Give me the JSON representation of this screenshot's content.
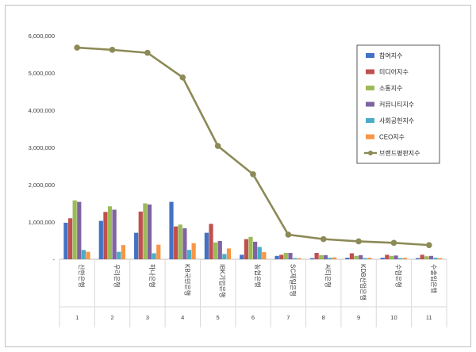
{
  "chart_data": {
    "type": "bar",
    "categories": [
      "신한은행",
      "우리은행",
      "하나은행",
      "KB국민은행",
      "IBK기업은행",
      "농협은행",
      "SC제일은행",
      "씨티은행",
      "KDB산업은행",
      "수협은행",
      "수출입은행"
    ],
    "category_numbers": [
      "1",
      "2",
      "3",
      "4",
      "5",
      "6",
      "7",
      "8",
      "9",
      "10",
      "11"
    ],
    "ylim": [
      0,
      6000000
    ],
    "yticks": [
      {
        "value": 0,
        "label": "-"
      },
      {
        "value": 1000000,
        "label": "1,000,000"
      },
      {
        "value": 2000000,
        "label": "2,000,000"
      },
      {
        "value": 3000000,
        "label": "3,000,000"
      },
      {
        "value": 4000000,
        "label": "4,000,000"
      },
      {
        "value": 5000000,
        "label": "5,000,000"
      },
      {
        "value": 6000000,
        "label": "6,000,000"
      }
    ],
    "grid": false,
    "legend_position": "right",
    "series": [
      {
        "name": "참여지수",
        "kind": "bar",
        "color": "#4472c4",
        "values": [
          980000,
          1030000,
          710000,
          1540000,
          710000,
          120000,
          90000,
          30000,
          40000,
          40000,
          30000
        ]
      },
      {
        "name": "미디어지수",
        "kind": "bar",
        "color": "#c0504d",
        "values": [
          1100000,
          1270000,
          1280000,
          880000,
          950000,
          540000,
          120000,
          170000,
          160000,
          120000,
          120000
        ]
      },
      {
        "name": "소통지수",
        "kind": "bar",
        "color": "#9bbb59",
        "values": [
          1580000,
          1420000,
          1500000,
          930000,
          450000,
          600000,
          170000,
          110000,
          90000,
          90000,
          80000
        ]
      },
      {
        "name": "커뮤니티지수",
        "kind": "bar",
        "color": "#8064a2",
        "values": [
          1540000,
          1330000,
          1470000,
          830000,
          490000,
          470000,
          170000,
          110000,
          110000,
          100000,
          90000
        ]
      },
      {
        "name": "사회공헌지수",
        "kind": "bar",
        "color": "#4bacc6",
        "values": [
          250000,
          200000,
          160000,
          250000,
          140000,
          330000,
          30000,
          40000,
          30000,
          30000,
          40000
        ]
      },
      {
        "name": "CEO지수",
        "kind": "bar",
        "color": "#f79646",
        "values": [
          200000,
          380000,
          390000,
          430000,
          290000,
          190000,
          30000,
          50000,
          40000,
          40000,
          30000
        ]
      },
      {
        "name": "브랜드평판지수",
        "kind": "line",
        "color": "#8c8a56",
        "values": [
          5680000,
          5620000,
          5540000,
          4880000,
          3040000,
          2280000,
          660000,
          540000,
          480000,
          440000,
          380000
        ]
      }
    ]
  }
}
